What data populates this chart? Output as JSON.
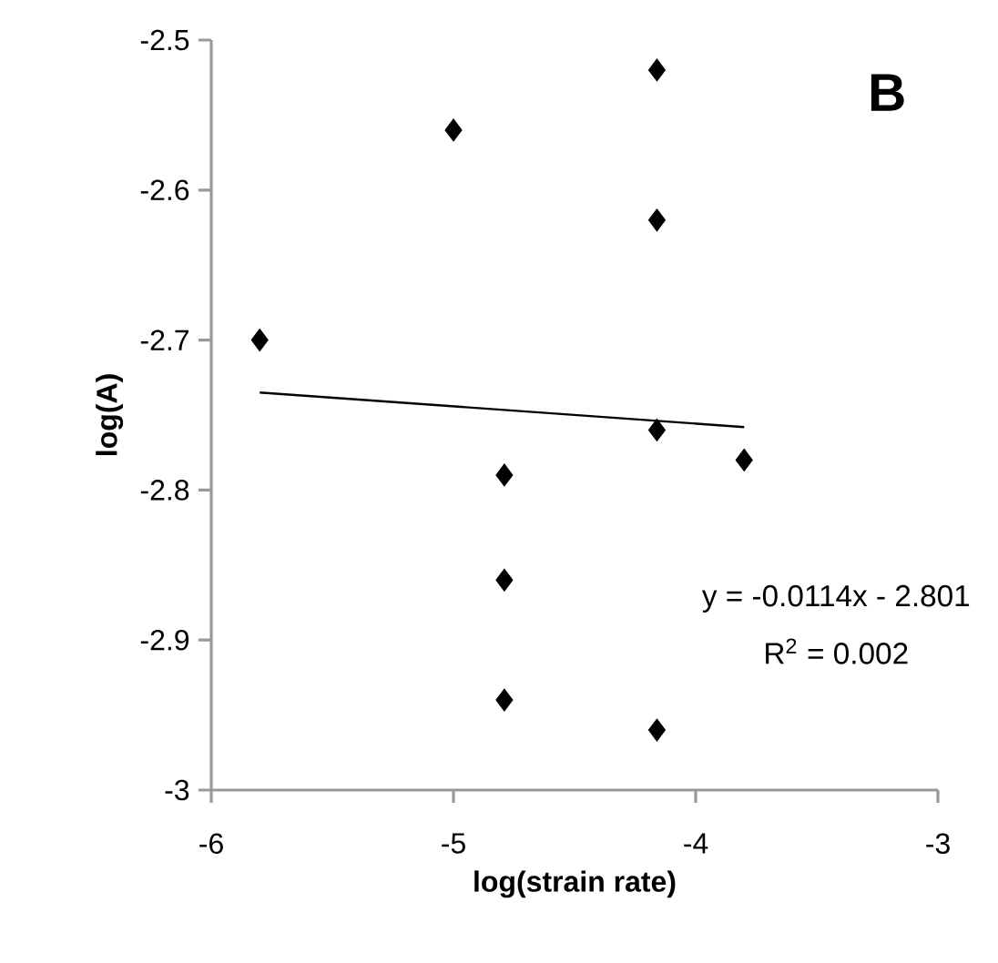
{
  "chart_data": {
    "type": "scatter",
    "xlabel": "log(strain rate)",
    "ylabel": "log(A)",
    "xlim": [
      -6,
      -3
    ],
    "xticks": [
      -6,
      -5,
      -4,
      -3
    ],
    "ylim": [
      -3,
      -2.5
    ],
    "yticks": [
      -3,
      -2.9,
      -2.8,
      -2.7,
      -2.6,
      -2.5
    ],
    "series": [
      {
        "marker": "diamond",
        "color": "#000000",
        "x": [
          -5.8,
          -5.0,
          -4.16,
          -4.16,
          -4.16,
          -3.8,
          -4.79,
          -4.79,
          -4.79,
          -4.16
        ],
        "values": [
          -2.7,
          -2.56,
          -2.52,
          -2.62,
          -2.76,
          -2.78,
          -2.79,
          -2.86,
          -2.94,
          -2.96
        ]
      },
      {
        "type": "line",
        "marker": "none",
        "color": "#000000",
        "x": [
          -5.8,
          -3.8
        ],
        "values": [
          -2.735,
          -2.758
        ]
      }
    ],
    "annotations": [
      "B",
      "y = -0.0114x - 2.801",
      "R$^{2}$ = 0.002"
    ]
  }
}
